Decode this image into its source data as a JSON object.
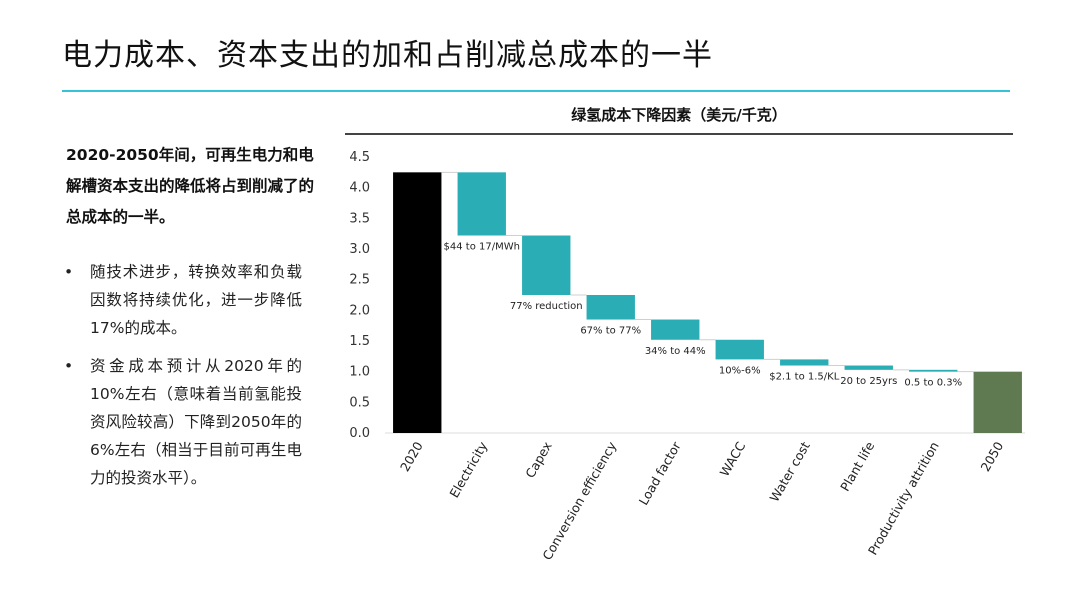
{
  "page": {
    "title": "电力成本、资本支出的加和占削减总成本的一半",
    "lead": "2020-2050年间，可再生电力和电解槽资本支出的降低将占到削减了的总成本的一半。",
    "bullets": [
      {
        "symbol": "•",
        "text": "随技术进步，转换效率和负载因数将持续优化，进一步降低17%的成本。"
      },
      {
        "symbol": "•",
        "text": "资金成本预计从2020年的10%左右（意味着当前氢能投资风险较高）下降到2050年的6%左右（相当于目前可再生电力的投资水平）。"
      }
    ]
  },
  "colors": {
    "accent_rule": "#35c3d5",
    "start_bar": "#000000",
    "step_bar": "#2aadb5",
    "end_bar": "#5f7a50"
  },
  "chart_data": {
    "type": "bar",
    "subtype": "waterfall",
    "title": "绿氢成本下降因素（美元/千克）",
    "ylim": [
      0,
      4.5
    ],
    "yticks": [
      "0.0",
      "0.5",
      "1.0",
      "1.5",
      "2.0",
      "2.5",
      "3.0",
      "3.5",
      "4.0",
      "4.5"
    ],
    "bars": [
      {
        "category": "2020",
        "kind": "total",
        "start": 0,
        "end": 4.25,
        "label": ""
      },
      {
        "category": "Electricity",
        "kind": "step",
        "start": 4.25,
        "end": 3.22,
        "label": "$44 to 17/MWh"
      },
      {
        "category": "Capex",
        "kind": "step",
        "start": 3.22,
        "end": 2.25,
        "label": "77% reduction"
      },
      {
        "category": "Conversion efficiency",
        "kind": "step",
        "start": 2.25,
        "end": 1.85,
        "label": "67% to 77%"
      },
      {
        "category": "Load factor",
        "kind": "step",
        "start": 1.85,
        "end": 1.52,
        "label": "34% to 44%"
      },
      {
        "category": "WACC",
        "kind": "step",
        "start": 1.52,
        "end": 1.2,
        "label": "10%-6%"
      },
      {
        "category": "Water cost",
        "kind": "step",
        "start": 1.2,
        "end": 1.1,
        "label": "$2.1 to 1.5/KL"
      },
      {
        "category": "Plant life",
        "kind": "step",
        "start": 1.1,
        "end": 1.03,
        "label": "20 to 25yrs"
      },
      {
        "category": "Productivity attrition",
        "kind": "step",
        "start": 1.03,
        "end": 1.0,
        "label": "0.5 to 0.3%"
      },
      {
        "category": "2050",
        "kind": "total",
        "start": 0,
        "end": 1.0,
        "label": ""
      }
    ]
  }
}
